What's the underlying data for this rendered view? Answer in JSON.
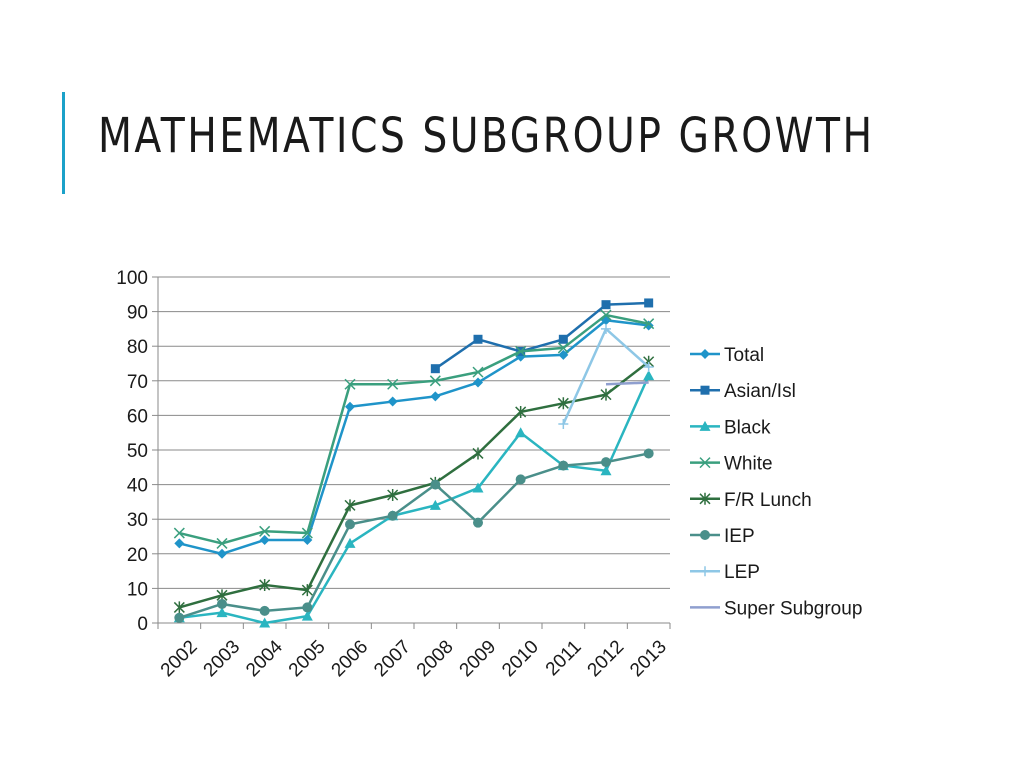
{
  "slide": {
    "title": "MATHEMATICS SUBGROUP GROWTH"
  },
  "colors": {
    "accent": "#1ba1c9"
  },
  "chart_data": {
    "type": "line",
    "title": "",
    "xlabel": "",
    "ylabel": "",
    "ylim": [
      0,
      100
    ],
    "yticks": [
      0,
      10,
      20,
      30,
      40,
      50,
      60,
      70,
      80,
      90,
      100
    ],
    "grid": true,
    "legend_position": "right",
    "categories": [
      "2002",
      "2003",
      "2004",
      "2005",
      "2006",
      "2007",
      "2008",
      "2009",
      "2010",
      "2011",
      "2012",
      "2013"
    ],
    "series": [
      {
        "name": "Total",
        "color": "#1f94c9",
        "marker": "diamond",
        "values": [
          23,
          20,
          24,
          24,
          62.5,
          64,
          65.5,
          69.5,
          77,
          77.5,
          87.5,
          86
        ]
      },
      {
        "name": "Asian/Isl",
        "color": "#1f6fad",
        "marker": "square",
        "values": [
          null,
          null,
          null,
          null,
          null,
          null,
          73.5,
          82,
          78.5,
          82,
          92,
          92.5
        ]
      },
      {
        "name": "Black",
        "color": "#2ab5c0",
        "marker": "triangle",
        "values": [
          1.5,
          3,
          0,
          2,
          23,
          31,
          34,
          39,
          55,
          45.5,
          44,
          71.5
        ]
      },
      {
        "name": "White",
        "color": "#3a9f7e",
        "marker": "x",
        "values": [
          26,
          23,
          26.5,
          26,
          69,
          69,
          70,
          72.5,
          78.5,
          79.5,
          89,
          86.5
        ]
      },
      {
        "name": "F/R Lunch",
        "color": "#2f6f3f",
        "marker": "star",
        "values": [
          4.5,
          8,
          11,
          9.5,
          34,
          37,
          40.5,
          49,
          61,
          63.5,
          66,
          75.5
        ]
      },
      {
        "name": "IEP",
        "color": "#4a8f8a",
        "marker": "circle",
        "values": [
          1.5,
          5.5,
          3.5,
          4.5,
          28.5,
          31,
          40,
          29,
          41.5,
          45.5,
          46.5,
          49
        ]
      },
      {
        "name": "LEP",
        "color": "#8ec7e6",
        "marker": "plus",
        "values": [
          null,
          null,
          null,
          null,
          null,
          null,
          null,
          null,
          null,
          57.5,
          85,
          74
        ]
      },
      {
        "name": "Super Subgroup",
        "color": "#8f9fcf",
        "marker": "none",
        "values": [
          null,
          null,
          null,
          null,
          null,
          null,
          null,
          null,
          null,
          null,
          69,
          69.5
        ]
      }
    ]
  }
}
